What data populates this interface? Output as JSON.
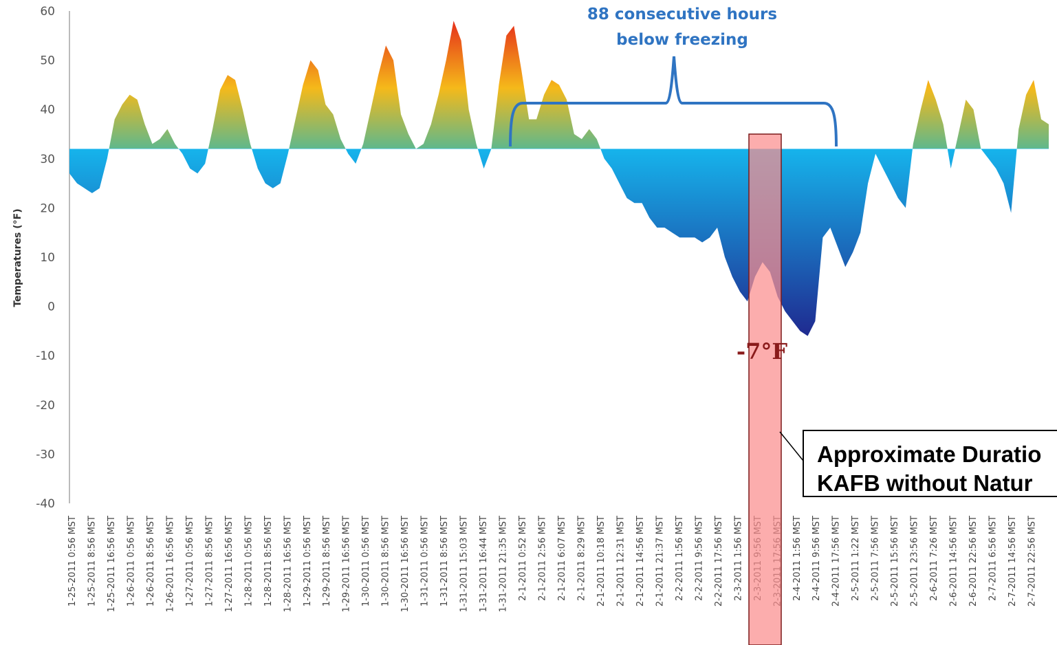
{
  "chart_data": {
    "type": "area",
    "title": "",
    "ylabel": "Temperatures (°F)",
    "xlabel": "",
    "ylim": [
      -40,
      60
    ],
    "yticks": [
      60,
      50,
      40,
      30,
      20,
      10,
      0,
      -10,
      -20,
      -30,
      -40
    ],
    "baseline": 32,
    "grid": false,
    "x_tick_labels": [
      "1-25-2011 0:56 MST",
      "1-25-2011 8:56 MST",
      "1-25-2011 16:56 MST",
      "1-26-2011 0:56 MST",
      "1-26-2011 8:56 MST",
      "1-26-2011 16:56 MST",
      "1-27-2011 0:56 MST",
      "1-27-2011 8:56 MST",
      "1-27-2011 16:56 MST",
      "1-28-2011 0:56 MST",
      "1-28-2011 8:56 MST",
      "1-28-2011 16:56 MST",
      "1-29-2011 0:56 MST",
      "1-29-2011 8:56 MST",
      "1-29-2011 16:56 MST",
      "1-30-2011 0:56 MST",
      "1-30-2011 8:56 MST",
      "1-30-2011 16:56 MST",
      "1-31-2011 0:56 MST",
      "1-31-2011 8:56 MST",
      "1-31-2011 15:03 MST",
      "1-31-2011 16:44 MST",
      "1-31-2011 21:35 MST",
      "2-1-2011 0:52 MST",
      "2-1-2011 2:56 MST",
      "2-1-2011 6:07 MST",
      "2-1-2011 8:29 MST",
      "2-1-2011 10:18 MST",
      "2-1-2011 12:31 MST",
      "2-1-2011 14:56 MST",
      "2-1-2011 21:37 MST",
      "2-2-2011 1:56 MST",
      "2-2-2011 9:56 MST",
      "2-2-2011 17:56 MST",
      "2-3-2011 1:56 MST",
      "2-3-2011 9:56 MST",
      "2-3-2011 17:56 MST",
      "2-4-2011 1:56 MST",
      "2-4-2011 9:56 MST",
      "2-4-2011 17:56 MST",
      "2-5-2011 1:22 MST",
      "2-5-2011 7:56 MST",
      "2-5-2011 15:56 MST",
      "2-5-2011 23:56 MST",
      "2-6-2011 7:26 MST",
      "2-6-2011 14:56 MST",
      "2-6-2011 22:56 MST",
      "2-7-2011 6:56 MST",
      "2-7-2011 14:56 MST",
      "2-7-2011 22:56 MST"
    ],
    "series": [
      {
        "values": [
          27,
          25,
          24,
          23,
          24,
          30,
          38,
          41,
          43,
          42,
          37,
          33,
          34,
          36,
          33,
          31,
          28,
          27,
          29,
          36,
          44,
          47,
          46,
          40,
          33,
          28,
          25,
          24,
          25,
          31,
          38,
          45,
          50,
          48,
          41,
          39,
          34,
          31,
          29,
          33,
          40,
          47,
          53,
          50,
          39,
          35,
          32,
          33,
          37,
          43,
          50,
          58,
          54,
          40,
          33,
          28,
          32,
          45,
          55,
          57,
          48,
          38,
          38,
          43,
          46,
          45,
          42,
          35,
          34,
          36,
          34,
          30,
          28,
          25,
          22,
          21,
          21,
          18,
          16,
          16,
          15,
          14,
          14,
          14,
          13,
          14,
          16,
          10,
          6,
          3,
          1,
          6,
          9,
          7,
          2,
          -1,
          -3,
          -5,
          -6,
          -3,
          14,
          16,
          12,
          8,
          11,
          15,
          25,
          31,
          28,
          25,
          22,
          20,
          33,
          40,
          46,
          42,
          37,
          28,
          35,
          42,
          40,
          32,
          30,
          28,
          25,
          19,
          36,
          43,
          46,
          38,
          37
        ]
      }
    ],
    "colors": {
      "warm_top": "#e4211b",
      "warm_mid": "#f5b91a",
      "warm_base": "#5fb88c",
      "cold_top": "#16b4ec",
      "cold_bottom": "#1f2d92",
      "bracket": "#2f74c2",
      "highlight": "#fb8e8e",
      "highlight_border": "#7a1a1a"
    }
  },
  "annotations": {
    "freeze_line1": "88 consecutive hours",
    "freeze_line2": "below freezing",
    "min_label": "-7°F",
    "duration_line1": "Approximate Duratio",
    "duration_line2": "KAFB without Natur"
  }
}
